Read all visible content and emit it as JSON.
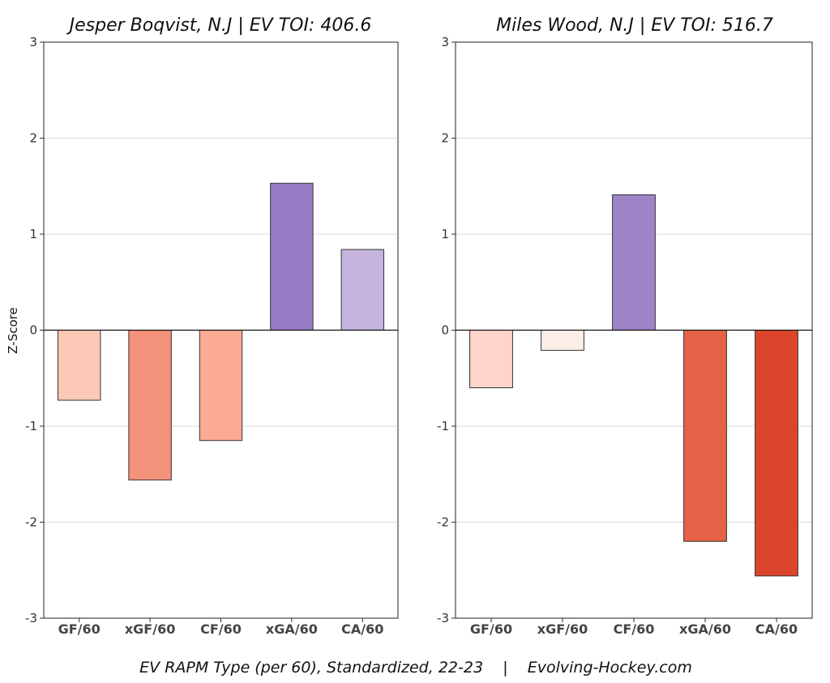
{
  "y_axis_label": "Z-Score",
  "caption": "EV RAPM Type (per 60), Standardized, 22-23    |    Evolving-Hockey.com",
  "colors": {
    "gridline": "#d9d9d9",
    "bar_outline": "#333333"
  },
  "chart_data": [
    {
      "type": "bar",
      "title": "Jesper Boqvist, N.J  |  EV TOI: 406.6",
      "categories": [
        "GF/60",
        "xGF/60",
        "CF/60",
        "xGA/60",
        "CA/60"
      ],
      "values": [
        -0.73,
        -1.56,
        -1.15,
        1.53,
        0.84
      ],
      "colors": [
        "#fdc9b7",
        "#f4917a",
        "#fbaa93",
        "#977ac4",
        "#c5b5de"
      ],
      "ylim": [
        -3,
        3
      ],
      "yticks": [
        "-3",
        "-2",
        "-1",
        "0",
        "1",
        "2",
        "3"
      ],
      "grid": true,
      "legend": "none"
    },
    {
      "type": "bar",
      "title": "Miles Wood, N.J  |  EV TOI: 516.7",
      "categories": [
        "GF/60",
        "xGF/60",
        "CF/60",
        "xGA/60",
        "CA/60"
      ],
      "values": [
        -0.6,
        -0.21,
        1.41,
        -2.2,
        -2.56
      ],
      "colors": [
        "#fed5c8",
        "#fdede8",
        "#9e85c7",
        "#e56246",
        "#dc442c"
      ],
      "ylim": [
        -3,
        3
      ],
      "yticks": [
        "-3",
        "-2",
        "-1",
        "0",
        "1",
        "2",
        "3"
      ],
      "grid": true,
      "legend": "none"
    }
  ]
}
